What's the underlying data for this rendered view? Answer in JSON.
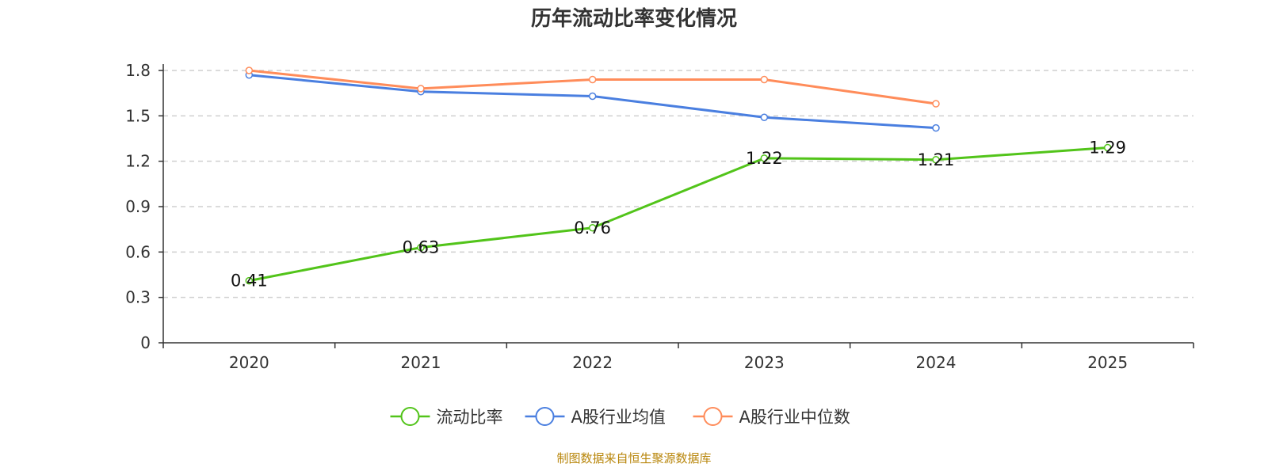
{
  "chart_data": {
    "type": "line",
    "title": "历年流动比率变化情况",
    "categories": [
      "2020",
      "2021",
      "2022",
      "2023",
      "2024",
      "2025"
    ],
    "y_ticks": [
      "0",
      "0.3",
      "0.6",
      "0.9",
      "1.2",
      "1.5",
      "1.8"
    ],
    "ylim": [
      0,
      1.8
    ],
    "grid": true,
    "legend_position": "bottom",
    "series": [
      {
        "name": "流动比率",
        "color": "#52c41a",
        "values": [
          0.41,
          0.63,
          0.76,
          1.22,
          1.21,
          1.29
        ],
        "labels": [
          "0.41",
          "0.63",
          "0.76",
          "1.22",
          "1.21",
          "1.29"
        ],
        "show_labels": true
      },
      {
        "name": "A股行业均值",
        "color": "#4a7fe0",
        "values": [
          1.77,
          1.66,
          1.63,
          1.49,
          1.42,
          null
        ],
        "show_labels": false
      },
      {
        "name": "A股行业中位数",
        "color": "#ff8c5a",
        "values": [
          1.8,
          1.68,
          1.74,
          1.74,
          1.58,
          null
        ],
        "show_labels": false
      }
    ],
    "source": "制图数据来自恒生聚源数据库",
    "source_color": "#b8860b"
  }
}
